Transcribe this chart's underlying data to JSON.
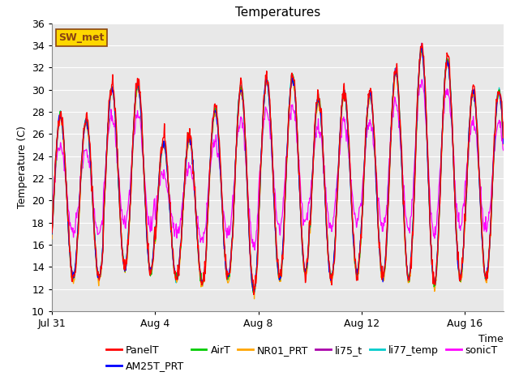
{
  "title": "Temperatures",
  "xlabel": "Time",
  "ylabel": "Temperature (C)",
  "ylim": [
    10,
    36
  ],
  "yticks": [
    10,
    12,
    14,
    16,
    18,
    20,
    22,
    24,
    26,
    28,
    30,
    32,
    34,
    36
  ],
  "xtick_labels": [
    "Jul 31",
    "Aug 4",
    "Aug 8",
    "Aug 12",
    "Aug 16"
  ],
  "xtick_positions": [
    0,
    4,
    8,
    12,
    16
  ],
  "annotation": "SW_met",
  "annotation_fgcolor": "#8B4513",
  "annotation_bg": "#FFD700",
  "annotation_border": "#8B4513",
  "series_colors": {
    "PanelT": "#FF0000",
    "AM25T_PRT": "#0000FF",
    "AirT": "#00CC00",
    "NR01_PRT": "#FFA500",
    "li75_t": "#AA00AA",
    "li77_temp": "#00CCCC",
    "sonicT": "#FF00FF"
  },
  "fig_bg": "#FFFFFF",
  "plot_bg": "#E8E8E8",
  "grid_color": "#FFFFFF",
  "title_fontsize": 11,
  "axis_label_fontsize": 9,
  "tick_fontsize": 9,
  "legend_fontsize": 9,
  "n_days": 17.5,
  "day_maxima_panel": [
    28.0,
    27.5,
    30.5,
    30.8,
    25.5,
    26.0,
    28.5,
    30.5,
    31.2,
    31.5,
    29.5,
    30.0,
    30.0,
    32.0,
    34.0,
    33.0,
    30.2
  ],
  "day_minima": [
    13.0,
    13.0,
    14.0,
    13.5,
    13.0,
    12.5,
    13.0,
    11.8,
    13.0,
    13.5,
    13.0,
    13.5,
    13.0,
    13.0,
    12.5,
    13.0,
    13.0
  ],
  "sonic_day_maxima": [
    25.0,
    24.5,
    27.5,
    27.8,
    22.5,
    23.0,
    25.5,
    27.5,
    28.2,
    28.5,
    26.5,
    27.0,
    27.0,
    29.0,
    31.0,
    30.0,
    27.2
  ],
  "sonic_day_minima": [
    17.0,
    17.0,
    18.0,
    17.5,
    17.0,
    16.5,
    17.0,
    16.0,
    17.5,
    18.0,
    17.5,
    18.0,
    17.5,
    17.5,
    17.0,
    17.5,
    17.5
  ]
}
